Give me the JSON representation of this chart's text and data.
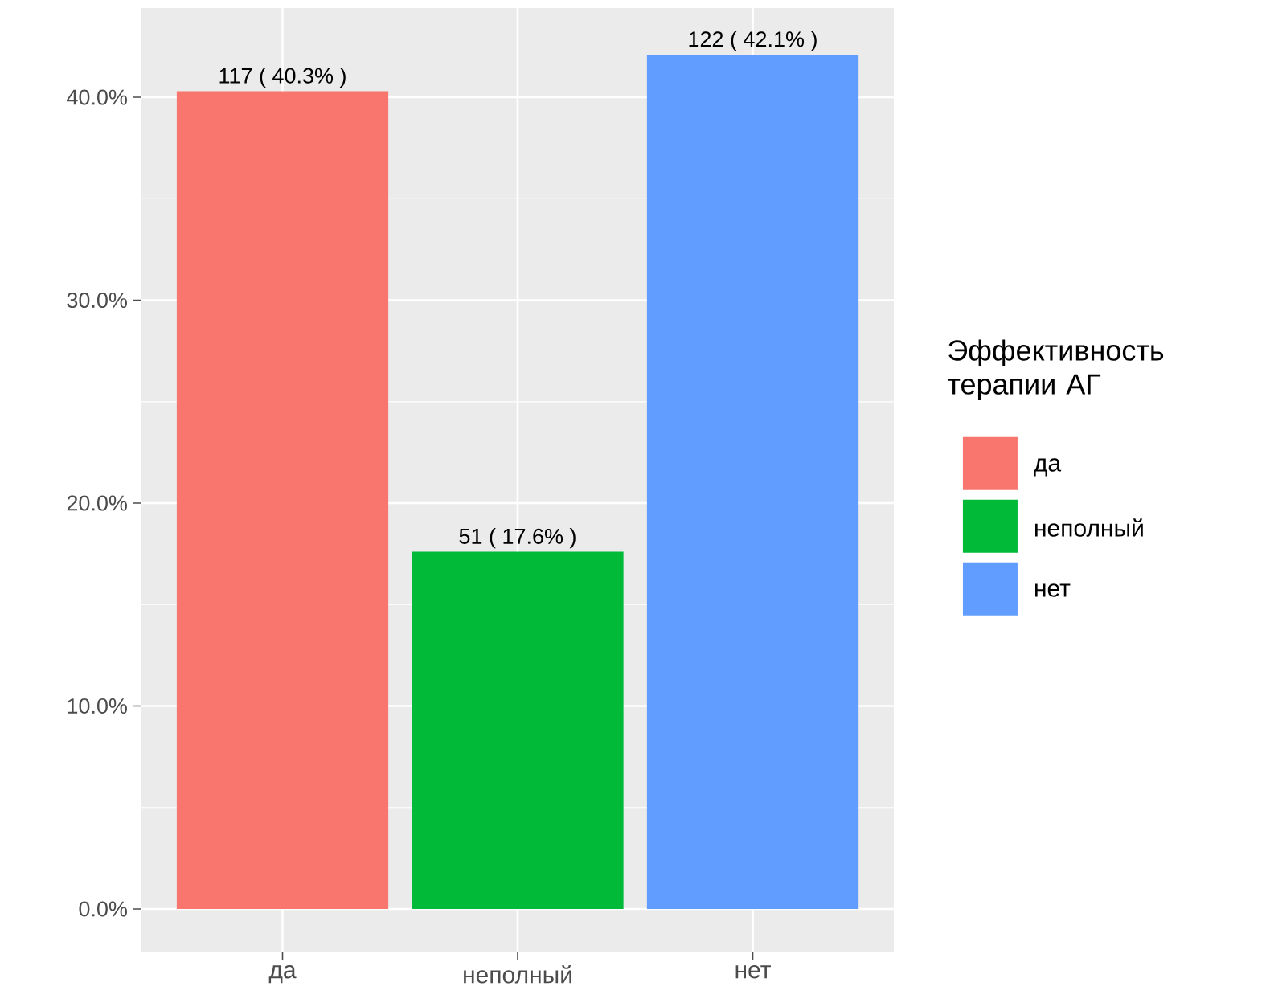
{
  "chart_data": {
    "type": "bar",
    "categories": [
      "да",
      "неполный",
      "нет"
    ],
    "series": [
      {
        "name": "да",
        "color": "#f8766d",
        "values": [
          40.3,
          null,
          null
        ],
        "value_labels": [
          "117 ( 40.3% )",
          null,
          null
        ]
      },
      {
        "name": "неполный",
        "color": "#00ba38",
        "values": [
          null,
          17.6,
          null
        ],
        "value_labels": [
          null,
          "51 ( 17.6% )",
          null
        ]
      },
      {
        "name": "нет",
        "color": "#619cff",
        "values": [
          null,
          null,
          42.1
        ],
        "value_labels": [
          null,
          null,
          "122 ( 42.1% )"
        ]
      }
    ],
    "ylim": [
      -2.1,
      44.4
    ],
    "yticks": [
      {
        "value": 0,
        "label": "0.0%"
      },
      {
        "value": 10,
        "label": "10.0%"
      },
      {
        "value": 20,
        "label": "20.0%"
      },
      {
        "value": 30,
        "label": "30.0%"
      },
      {
        "value": 40,
        "label": "40.0%"
      }
    ],
    "grid": true,
    "legend": "right",
    "legend_title": "Эффективность терапии АГ"
  }
}
